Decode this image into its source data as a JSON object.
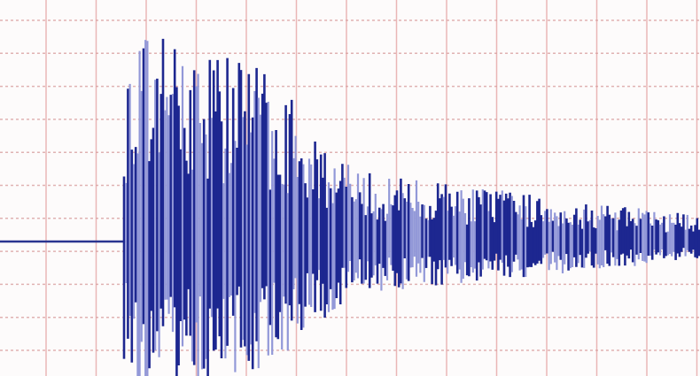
{
  "image": {
    "subject": "seismogram-trace",
    "colors": {
      "background": "#fdfbfb",
      "grid_vertical": "#e6a6a6",
      "grid_horizontal": "#d9a0a0",
      "baseline": "#2a3590",
      "trace_dark": "#1d2790",
      "trace_light": "#9298d8"
    }
  }
}
